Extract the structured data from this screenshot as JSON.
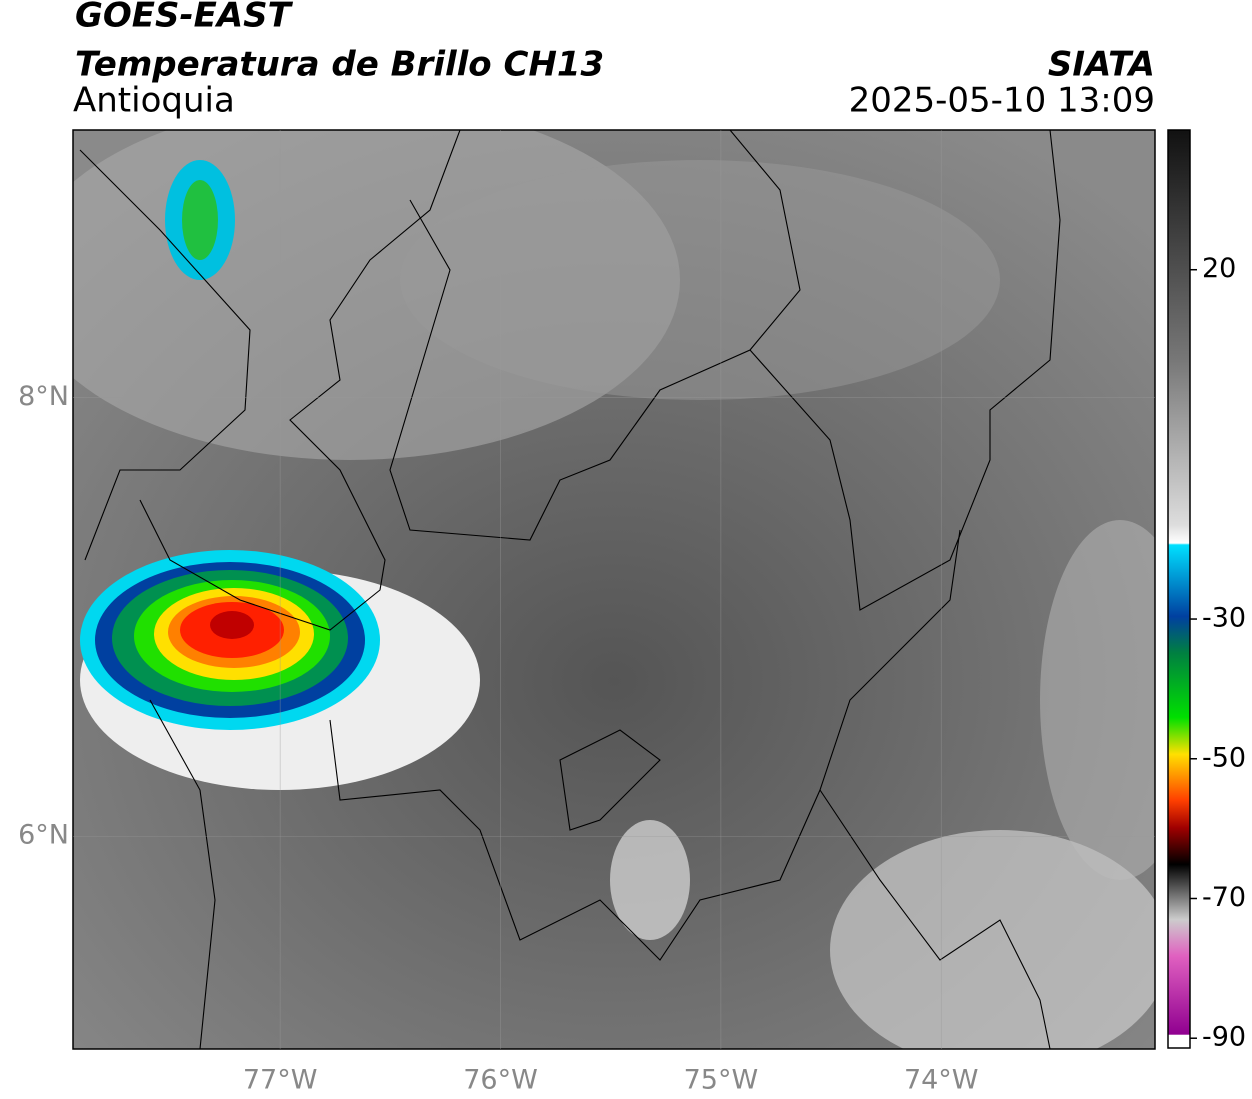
{
  "header": {
    "title": "GOES-EAST",
    "subtitle": "Temperatura de Brillo CH13",
    "region": "Antioquia",
    "source": "SIATA",
    "datetime": "2025-05-10 13:09"
  },
  "map": {
    "xlim": [
      -77.94,
      -73.03
    ],
    "ylim": [
      5.03,
      9.22
    ],
    "xticks": [
      {
        "value": -77,
        "label": "77°W"
      },
      {
        "value": -76,
        "label": "76°W"
      },
      {
        "value": -75,
        "label": "75°W"
      },
      {
        "value": -74,
        "label": "74°W"
      }
    ],
    "yticks": [
      {
        "value": 8,
        "label": "8°N"
      },
      {
        "value": 6,
        "label": "6°N"
      }
    ]
  },
  "colorbar": {
    "lim": [
      -91.4,
      40
    ],
    "ticks": [
      20,
      -30,
      -50,
      -70,
      -90
    ]
  }
}
